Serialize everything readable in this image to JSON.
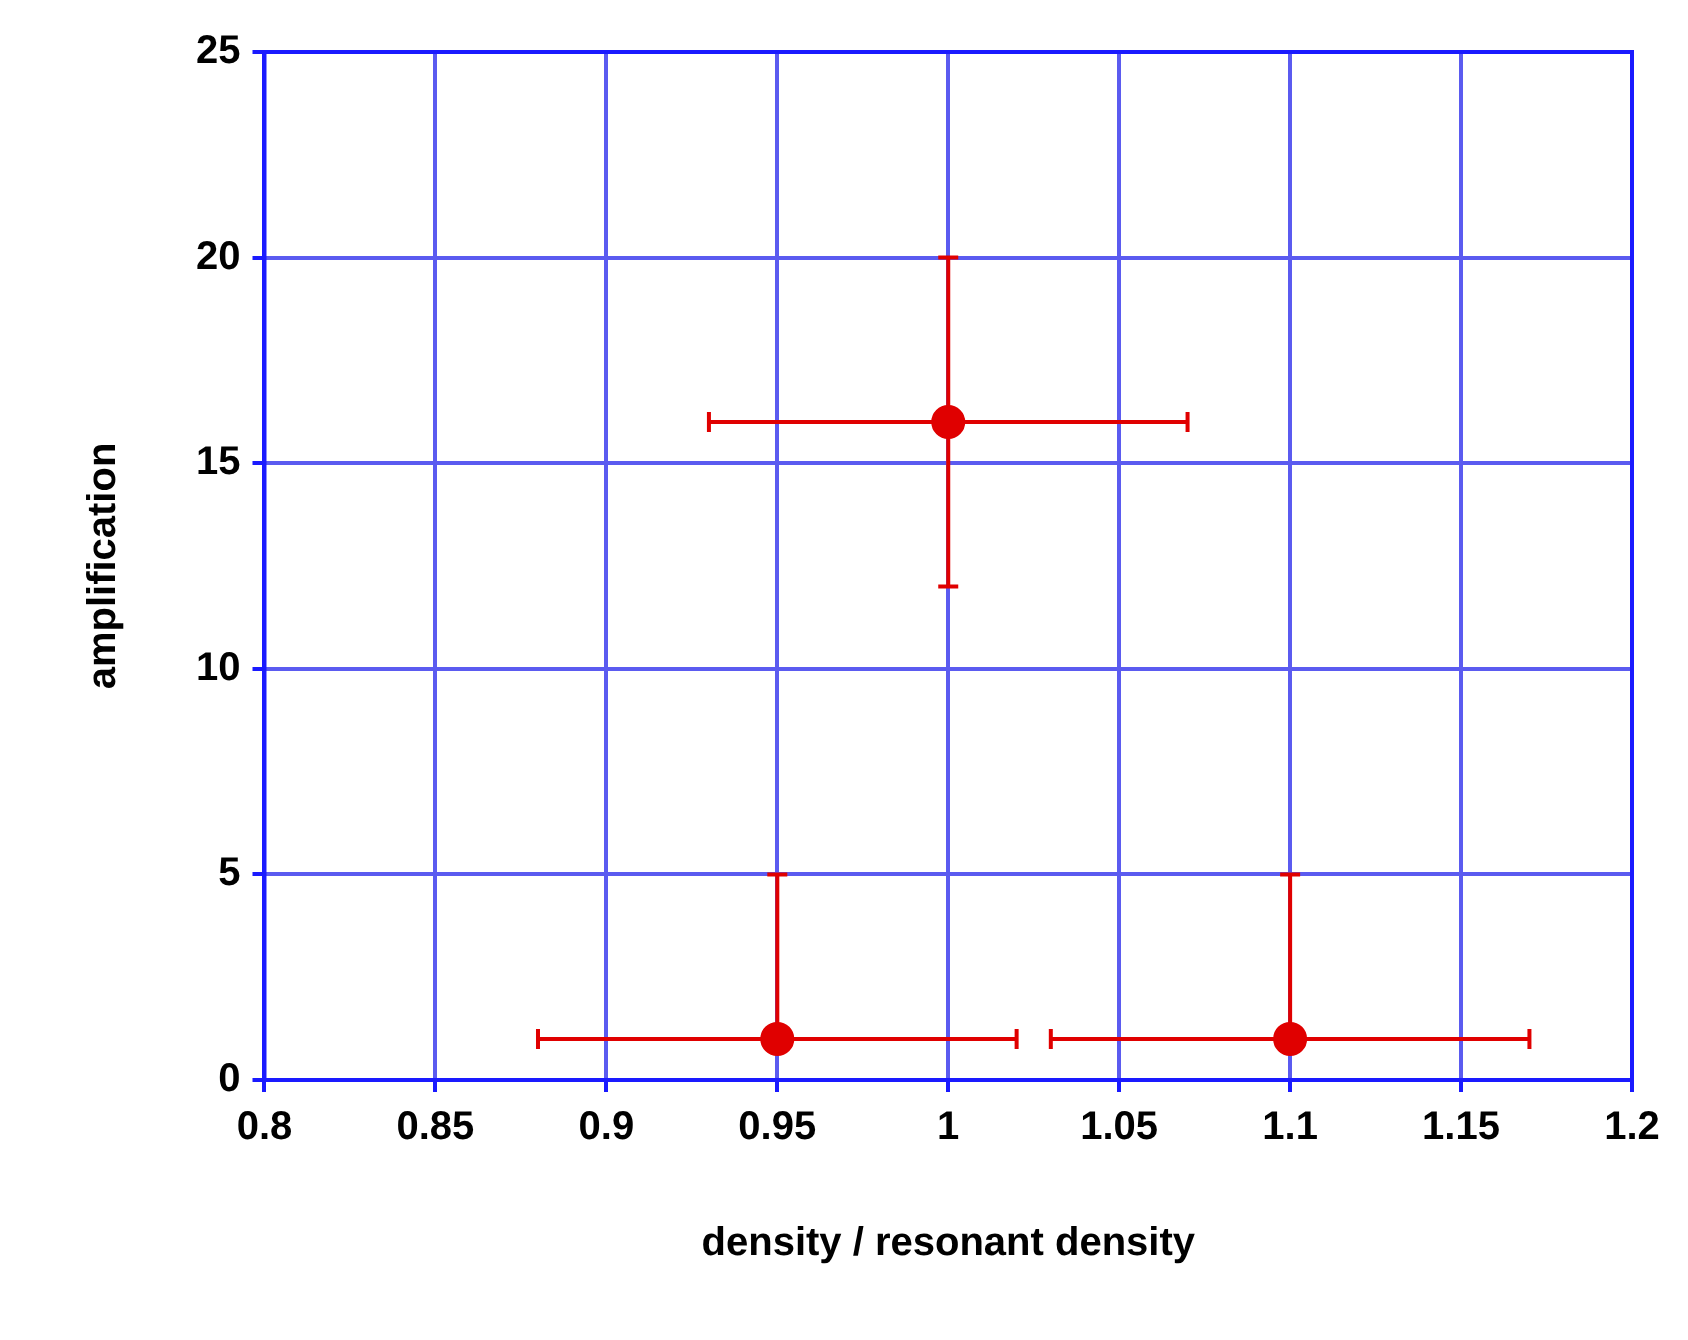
{
  "chart_data": {
    "type": "scatter",
    "xlabel": "density / resonant density",
    "ylabel": "amplification",
    "x": [
      0.95,
      1,
      1.1
    ],
    "series": [
      {
        "color": "#e00000",
        "values": [
          1,
          16,
          1
        ],
        "errors": [
          [
            1,
            5
          ],
          [
            12,
            20
          ],
          [
            1,
            5
          ]
        ],
        "xerrors": [
          [
            0.88,
            1.02
          ],
          [
            0.93,
            1.07
          ],
          [
            1.03,
            1.17
          ]
        ]
      }
    ],
    "xlim": [
      0.8,
      1.2
    ],
    "xticks": [
      0.8,
      0.85,
      0.9,
      0.95,
      1,
      1.05,
      1.1,
      1.15,
      1.2
    ],
    "ylim": [
      0,
      25
    ],
    "yticks": [
      0,
      5,
      10,
      15,
      20,
      25
    ],
    "grid": true,
    "marker": "circle",
    "legend": false
  }
}
